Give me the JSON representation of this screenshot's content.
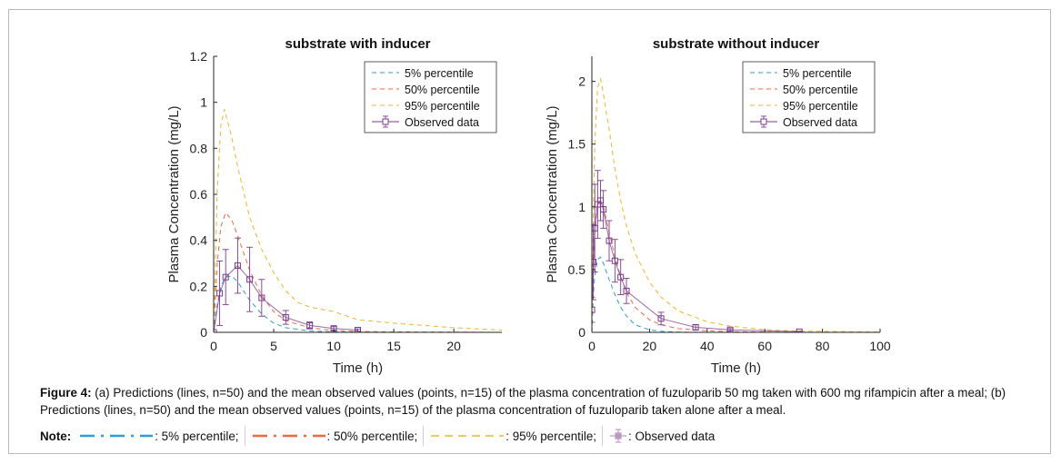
{
  "colors": {
    "p5": "#2e9bd6",
    "p50": "#e96a41",
    "p95": "#efb52f",
    "observed": "#7b3a8c",
    "axis": "#262626"
  },
  "chart_data": [
    {
      "type": "line",
      "title": "substrate with inducer",
      "xlabel": "Time (h)",
      "ylabel": "Plasma Concentration (mg/L)",
      "xlim": [
        0,
        24
      ],
      "ylim": [
        0,
        1.2
      ],
      "xticks": [
        "0",
        "5",
        "10",
        "15",
        "20"
      ],
      "xtick_values": [
        0,
        5,
        10,
        15,
        20
      ],
      "yticks": [
        "0",
        "0.2",
        "0.4",
        "0.6",
        "0.8",
        "1",
        "1.2"
      ],
      "ytick_values": [
        0,
        0.2,
        0.4,
        0.6,
        0.8,
        1.0,
        1.2
      ],
      "legend_position": "top-right",
      "series": [
        {
          "name": "5% percentile",
          "key": "p5",
          "x": [
            0,
            0.3,
            0.6,
            1,
            1.5,
            2,
            3,
            4,
            5,
            6,
            8,
            10,
            12,
            15,
            20,
            24
          ],
          "y": [
            0,
            0.12,
            0.2,
            0.24,
            0.245,
            0.22,
            0.14,
            0.08,
            0.04,
            0.02,
            0.006,
            0.002,
            0.001,
            0,
            0,
            0
          ]
        },
        {
          "name": "50% percentile",
          "key": "p50",
          "x": [
            0,
            0.3,
            0.6,
            1,
            1.5,
            2,
            3,
            4,
            5,
            6,
            8,
            10,
            12,
            15,
            20,
            24
          ],
          "y": [
            0,
            0.3,
            0.46,
            0.52,
            0.49,
            0.42,
            0.27,
            0.16,
            0.09,
            0.05,
            0.02,
            0.008,
            0.004,
            0.002,
            0.001,
            0
          ]
        },
        {
          "name": "95% percentile",
          "key": "p95",
          "x": [
            0,
            0.3,
            0.6,
            0.9,
            1.5,
            2,
            3,
            4,
            5,
            6,
            7,
            8,
            10,
            12,
            15,
            20,
            24
          ],
          "y": [
            0,
            0.62,
            0.9,
            0.97,
            0.85,
            0.72,
            0.5,
            0.36,
            0.26,
            0.18,
            0.13,
            0.11,
            0.09,
            0.055,
            0.04,
            0.02,
            0.01
          ]
        },
        {
          "name": "Observed data",
          "key": "observed",
          "x": [
            0,
            0.5,
            1,
            2,
            3,
            4,
            6,
            8,
            10,
            12
          ],
          "y": [
            0,
            0.17,
            0.24,
            0.29,
            0.23,
            0.15,
            0.065,
            0.03,
            0.017,
            0.01
          ],
          "err": [
            0,
            0.14,
            0.12,
            0.12,
            0.14,
            0.08,
            0.03,
            0.015,
            0.008,
            0.005
          ]
        }
      ]
    },
    {
      "type": "line",
      "title": "substrate without inducer",
      "xlabel": "Time (h)",
      "ylabel": "Plasma Concentration (mg/L)",
      "xlim": [
        0,
        100
      ],
      "ylim": [
        0,
        2.2
      ],
      "xticks": [
        "0",
        "20",
        "40",
        "60",
        "80",
        "100"
      ],
      "xtick_values": [
        0,
        20,
        40,
        60,
        80,
        100
      ],
      "yticks": [
        "0",
        "0.5",
        "1",
        "1.5",
        "2"
      ],
      "ytick_values": [
        0,
        0.5,
        1.0,
        1.5,
        2.0
      ],
      "legend_position": "top-right",
      "series": [
        {
          "name": "5% percentile",
          "key": "p5",
          "x": [
            0,
            0.5,
            1,
            2,
            3,
            4,
            6,
            8,
            10,
            12,
            15,
            20,
            24,
            30,
            40,
            100
          ],
          "y": [
            0,
            0.3,
            0.45,
            0.58,
            0.6,
            0.55,
            0.42,
            0.3,
            0.2,
            0.13,
            0.06,
            0.02,
            0.008,
            0.002,
            0,
            0
          ]
        },
        {
          "name": "50% percentile",
          "key": "p50",
          "x": [
            0,
            0.5,
            1,
            2,
            3,
            4,
            6,
            8,
            10,
            12,
            15,
            20,
            24,
            30,
            40,
            48,
            60,
            100
          ],
          "y": [
            0,
            0.5,
            0.8,
            1.02,
            1.05,
            1.0,
            0.8,
            0.6,
            0.44,
            0.32,
            0.2,
            0.1,
            0.06,
            0.03,
            0.012,
            0.006,
            0.002,
            0
          ]
        },
        {
          "name": "95% percentile",
          "key": "p95",
          "x": [
            0,
            0.5,
            1,
            2,
            3,
            4,
            5,
            6,
            8,
            10,
            12,
            15,
            20,
            24,
            30,
            40,
            48,
            60,
            72,
            100
          ],
          "y": [
            0,
            0.9,
            1.5,
            1.95,
            2.02,
            1.9,
            1.75,
            1.62,
            1.3,
            1.05,
            0.85,
            0.63,
            0.4,
            0.28,
            0.17,
            0.085,
            0.05,
            0.02,
            0.01,
            0.003
          ]
        },
        {
          "name": "Observed data",
          "key": "observed",
          "x": [
            0,
            0.5,
            1,
            2,
            3,
            4,
            6,
            8,
            10,
            12,
            24,
            36,
            48,
            72
          ],
          "y": [
            0.18,
            0.56,
            0.83,
            1.02,
            1.05,
            0.98,
            0.73,
            0.57,
            0.44,
            0.33,
            0.11,
            0.04,
            0.02,
            0.005
          ],
          "err": [
            0.1,
            0.3,
            0.35,
            0.27,
            0.16,
            0.15,
            0.16,
            0.17,
            0.14,
            0.1,
            0.05,
            0.02,
            0.01,
            0.003
          ]
        }
      ]
    }
  ],
  "caption": {
    "label": "Figure 4:",
    "text": " (a) Predictions (lines, n=50) and the mean observed values (points, n=15) of the plasma concentration of fuzuloparib 50 mg taken with 600 mg rifampicin after a meal; (b) Predictions (lines, n=50) and the mean observed values (points, n=15) of the plasma concentration of fuzuloparib taken alone after a meal."
  },
  "note": {
    "label": "Note:",
    "items": [
      {
        "key": "p5",
        "text": ": 5% percentile;"
      },
      {
        "key": "p50",
        "text": ": 50% percentile;"
      },
      {
        "key": "p95",
        "text": ": 95% percentile;"
      },
      {
        "key": "observed",
        "text": ": Observed data"
      }
    ]
  }
}
